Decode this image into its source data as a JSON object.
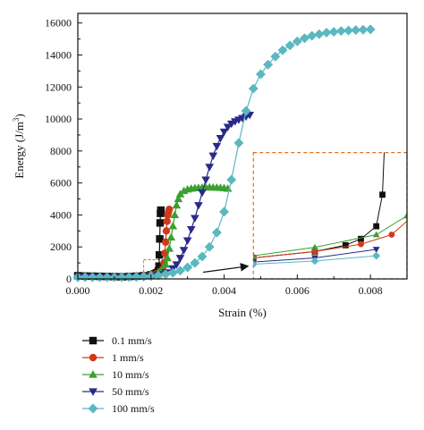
{
  "chart_data": {
    "type": "scatter",
    "title": "",
    "xlabel": "Strain (%)",
    "ylabel_main": "Energy (J/m",
    "ylabel_sup": "3",
    "ylabel_end": ")",
    "xlim": [
      0,
      0.009
    ],
    "ylim": [
      0,
      16600
    ],
    "x_ticks": [
      0,
      0.002,
      0.004,
      0.006,
      0.008
    ],
    "x_tick_labels": [
      "0.000",
      "0.002",
      "0.004",
      "0.006",
      "0.008"
    ],
    "y_ticks": [
      0,
      2000,
      4000,
      6000,
      8000,
      10000,
      12000,
      14000,
      16000
    ],
    "y_tick_labels": [
      "0",
      "2000",
      "4000",
      "6000",
      "8000",
      "10000",
      "12000",
      "14000",
      "16000"
    ],
    "grid": false,
    "legend_position": "below-left",
    "inset": {
      "source_xrange": [
        0.0018,
        0.0023
      ],
      "source_yrange": [
        0,
        1200
      ],
      "target_xrange": [
        0.0048,
        0.009
      ],
      "target_yrange": [
        0,
        7900
      ],
      "border_color": "#e07020"
    },
    "series": [
      {
        "name": "0.1 mm/s",
        "marker": "square",
        "color": "#111111",
        "x": [
          0.0,
          0.0002,
          0.0004,
          0.0006,
          0.0008,
          0.001,
          0.0012,
          0.0014,
          0.0016,
          0.0018,
          0.002,
          0.0021,
          0.00215,
          0.0022,
          0.00222,
          0.00223,
          0.00224,
          0.00225,
          0.00226,
          0.00227
        ],
        "y": [
          200,
          180,
          170,
          160,
          150,
          140,
          130,
          150,
          170,
          200,
          260,
          320,
          380,
          500,
          800,
          1500,
          2500,
          3500,
          4100,
          4300
        ]
      },
      {
        "name": "1 mm/s",
        "marker": "circle",
        "color": "#d03a1a",
        "x": [
          0.0,
          0.0002,
          0.0004,
          0.0006,
          0.0008,
          0.001,
          0.0012,
          0.0014,
          0.0016,
          0.0018,
          0.002,
          0.00215,
          0.00225,
          0.00232,
          0.00236,
          0.00238,
          0.0024,
          0.00242,
          0.00244,
          0.00246,
          0.00248,
          0.0025
        ],
        "y": [
          150,
          140,
          130,
          120,
          110,
          100,
          110,
          130,
          160,
          200,
          260,
          330,
          420,
          600,
          1000,
          1600,
          2300,
          3000,
          3600,
          4000,
          4200,
          4350
        ]
      },
      {
        "name": "10 mm/s",
        "marker": "triangle-up",
        "color": "#3aa030",
        "x": [
          0.0,
          0.0002,
          0.0004,
          0.0006,
          0.0008,
          0.001,
          0.0012,
          0.0014,
          0.0016,
          0.0018,
          0.002,
          0.0022,
          0.0023,
          0.0024,
          0.00245,
          0.0025,
          0.00255,
          0.0026,
          0.00265,
          0.0027,
          0.00275,
          0.0028,
          0.0029,
          0.003,
          0.0031,
          0.0032,
          0.0033,
          0.0034,
          0.0035,
          0.0036,
          0.0037,
          0.0038,
          0.0039,
          0.004,
          0.0041
        ],
        "y": [
          200,
          190,
          180,
          170,
          160,
          150,
          160,
          170,
          190,
          220,
          300,
          420,
          600,
          900,
          1300,
          1900,
          2600,
          3300,
          4000,
          4600,
          5000,
          5300,
          5500,
          5600,
          5650,
          5680,
          5700,
          5710,
          5720,
          5730,
          5720,
          5710,
          5700,
          5680,
          5650
        ]
      },
      {
        "name": "50 mm/s",
        "marker": "triangle-down",
        "color": "#2a2a8a",
        "x": [
          0.0,
          0.0002,
          0.0004,
          0.0006,
          0.0008,
          0.001,
          0.0012,
          0.0014,
          0.0016,
          0.0018,
          0.002,
          0.0022,
          0.0024,
          0.0026,
          0.0027,
          0.0028,
          0.0029,
          0.003,
          0.0031,
          0.0032,
          0.0033,
          0.0034,
          0.0035,
          0.0036,
          0.0037,
          0.0038,
          0.0039,
          0.004,
          0.0041,
          0.0042,
          0.0043,
          0.0044,
          0.0045,
          0.0046,
          0.0047
        ],
        "y": [
          150,
          140,
          130,
          120,
          110,
          100,
          110,
          120,
          140,
          160,
          200,
          280,
          400,
          650,
          900,
          1300,
          1800,
          2400,
          3100,
          3800,
          4600,
          5400,
          6200,
          7000,
          7700,
          8300,
          8800,
          9200,
          9500,
          9700,
          9850,
          9950,
          10050,
          10150,
          10250
        ]
      },
      {
        "name": "100 mm/s",
        "marker": "diamond",
        "color": "#5ab8c0",
        "x": [
          0.0,
          0.0002,
          0.0004,
          0.0006,
          0.0008,
          0.001,
          0.0012,
          0.0014,
          0.0016,
          0.0018,
          0.002,
          0.0022,
          0.0024,
          0.0026,
          0.0028,
          0.003,
          0.0032,
          0.0034,
          0.0036,
          0.0038,
          0.004,
          0.0042,
          0.0044,
          0.0046,
          0.0048,
          0.005,
          0.0052,
          0.0054,
          0.0056,
          0.0058,
          0.006,
          0.0062,
          0.0064,
          0.0066,
          0.0068,
          0.007,
          0.0072,
          0.0074,
          0.0076,
          0.0078,
          0.008
        ],
        "y": [
          100,
          100,
          100,
          100,
          100,
          100,
          100,
          110,
          120,
          140,
          170,
          220,
          290,
          380,
          520,
          720,
          1000,
          1400,
          2000,
          2900,
          4200,
          6200,
          8500,
          10500,
          11900,
          12800,
          13400,
          13900,
          14300,
          14600,
          14850,
          15050,
          15200,
          15300,
          15400,
          15450,
          15500,
          15530,
          15560,
          15580,
          15600
        ]
      }
    ]
  }
}
